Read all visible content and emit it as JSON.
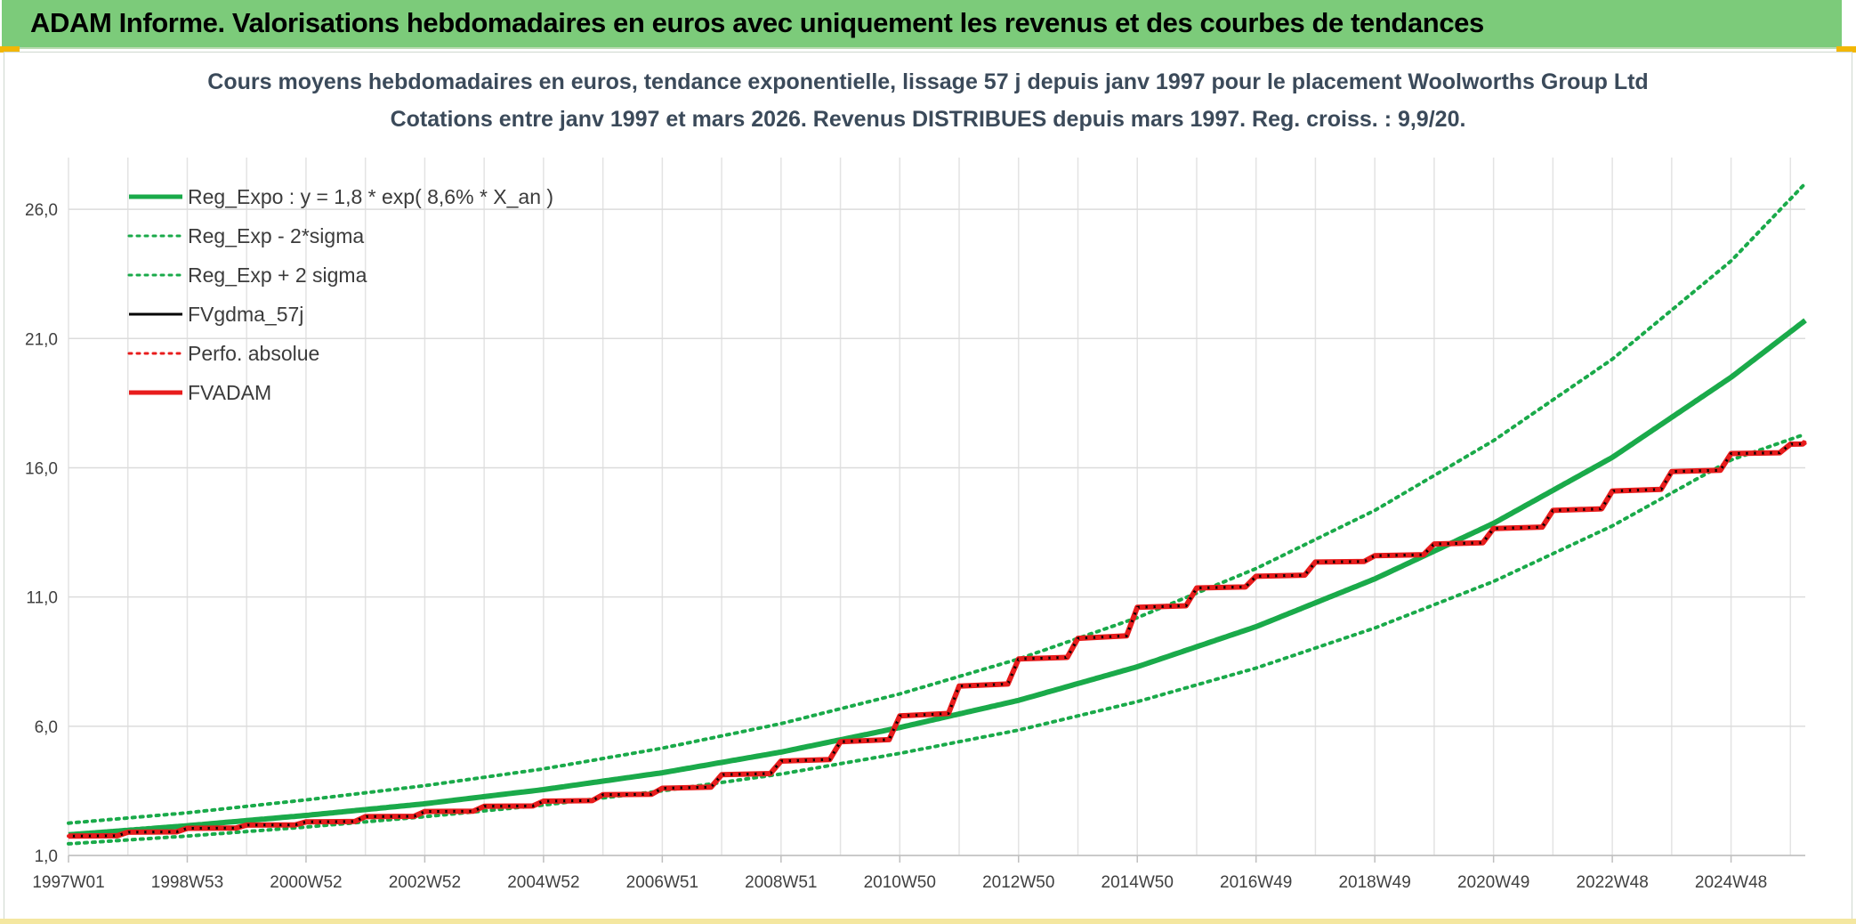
{
  "header": {
    "title": "ADAM Informe. Valorisations hebdomadaires en euros avec uniquement les revenus et des courbes de tendances"
  },
  "colors": {
    "header_bg": "#7ccb7a",
    "green": "#1aaa4a",
    "black": "#000000",
    "red": "#e81c1c",
    "grid": "#dcdcdc"
  },
  "chart_data": {
    "type": "line",
    "title": "Cours moyens hebdomadaires en euros, tendance exponentielle, lissage 57 j depuis janv 1997 pour le placement Woolworths Group Ltd",
    "subtitle": "Cotations entre janv 1997 et mars 2026. Revenus DISTRIBUES depuis mars 1997. Reg. croiss. : 9,9/20.",
    "xlabel": "",
    "ylabel": "",
    "x_range": [
      1997.0,
      2026.25
    ],
    "ylim": [
      1.0,
      28.0
    ],
    "y_ticks": [
      1.0,
      6.0,
      11.0,
      16.0,
      21.0,
      26.0
    ],
    "y_tick_labels": [
      "1,0",
      "6,0",
      "11,0",
      "16,0",
      "21,0",
      "26,0"
    ],
    "x_tick_positions": [
      1997.0,
      1999.0,
      2001.0,
      2003.0,
      2005.0,
      2007.0,
      2009.0,
      2011.0,
      2013.0,
      2015.0,
      2017.0,
      2019.0,
      2021.0,
      2023.0,
      2025.0
    ],
    "x_tick_labels": [
      "1997W01",
      "1998W53",
      "2000W52",
      "2002W52",
      "2004W52",
      "2006W51",
      "2008W51",
      "2010W50",
      "2012W50",
      "2014W50",
      "2016W49",
      "2018W49",
      "2020W49",
      "2022W48",
      "2024W48"
    ],
    "legend_position": "top-left",
    "series": [
      {
        "name": "Reg_Expo : y = 1,8 * exp( 8,6% *  X_an )",
        "color": "#1aaa4a",
        "style": "solid-thick",
        "x": [
          1997,
          1999,
          2001,
          2003,
          2005,
          2007,
          2009,
          2011,
          2013,
          2015,
          2017,
          2019,
          2021,
          2023,
          2025,
          2026.25
        ],
        "values": [
          1.8,
          2.15,
          2.55,
          3.0,
          3.55,
          4.2,
          5.0,
          5.95,
          7.0,
          8.3,
          9.85,
          11.7,
          13.85,
          16.4,
          19.5,
          21.7
        ]
      },
      {
        "name": "Reg_Exp - 2*sigma",
        "color": "#1aaa4a",
        "style": "dotted",
        "x": [
          1997,
          1999,
          2001,
          2003,
          2005,
          2007,
          2009,
          2011,
          2013,
          2015,
          2017,
          2019,
          2021,
          2023,
          2025,
          2026.25
        ],
        "values": [
          1.45,
          1.75,
          2.1,
          2.5,
          2.95,
          3.5,
          4.15,
          4.95,
          5.85,
          6.95,
          8.25,
          9.8,
          11.6,
          13.75,
          16.3,
          17.3
        ]
      },
      {
        "name": "Reg_Exp + 2 sigma",
        "color": "#1aaa4a",
        "style": "dotted",
        "x": [
          1997,
          1999,
          2001,
          2003,
          2005,
          2007,
          2009,
          2011,
          2013,
          2015,
          2017,
          2019,
          2021,
          2023,
          2025,
          2026.25
        ],
        "values": [
          2.25,
          2.65,
          3.15,
          3.7,
          4.35,
          5.15,
          6.1,
          7.25,
          8.6,
          10.2,
          12.1,
          14.35,
          17.05,
          20.2,
          24.0,
          27.0
        ]
      },
      {
        "name": "FVgdma_57j",
        "color": "#000000",
        "style": "solid",
        "x": [
          1997,
          1999,
          2001,
          2003,
          2005,
          2007,
          2009,
          2010,
          2011,
          2012,
          2013,
          2014,
          2015,
          2016,
          2017,
          2018,
          2019,
          2020,
          2021,
          2022,
          2023,
          2024,
          2025,
          2026.25
        ],
        "values": [
          1.75,
          2.05,
          2.3,
          2.7,
          3.1,
          3.6,
          4.65,
          5.4,
          6.4,
          7.55,
          8.6,
          9.4,
          10.6,
          11.35,
          11.8,
          12.35,
          12.6,
          13.05,
          13.65,
          14.35,
          15.1,
          15.85,
          16.55,
          17.0
        ]
      },
      {
        "name": "Perfo. absolue",
        "color": "#e81c1c",
        "style": "dotted",
        "x": [
          1997,
          1999,
          2001,
          2003,
          2005,
          2007,
          2009,
          2010,
          2011,
          2012,
          2013,
          2014,
          2015,
          2016,
          2017,
          2018,
          2019,
          2020,
          2021,
          2022,
          2023,
          2024,
          2025,
          2026.25
        ],
        "values": [
          1.75,
          2.05,
          2.3,
          2.7,
          3.1,
          3.6,
          4.65,
          5.4,
          6.4,
          7.55,
          8.6,
          9.4,
          10.6,
          11.35,
          11.8,
          12.35,
          12.6,
          13.05,
          13.65,
          14.35,
          15.1,
          15.85,
          16.55,
          17.0
        ]
      },
      {
        "name": "FVADAM",
        "color": "#e81c1c",
        "style": "solid-thick-stepped",
        "x": [
          1997,
          1999,
          2001,
          2003,
          2005,
          2007,
          2009,
          2010,
          2011,
          2012,
          2013,
          2014,
          2015,
          2016,
          2017,
          2018,
          2019,
          2020,
          2021,
          2022,
          2023,
          2024,
          2025,
          2026.25
        ],
        "values": [
          1.75,
          2.05,
          2.3,
          2.7,
          3.1,
          3.6,
          4.65,
          5.4,
          6.4,
          7.55,
          8.6,
          9.4,
          10.6,
          11.35,
          11.8,
          12.35,
          12.6,
          13.05,
          13.65,
          14.35,
          15.1,
          15.85,
          16.55,
          17.0
        ]
      }
    ]
  }
}
